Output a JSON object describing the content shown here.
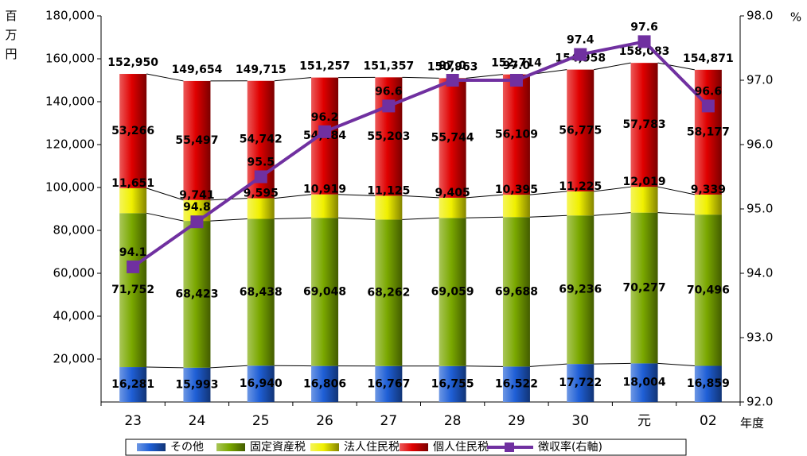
{
  "chart_data": {
    "type": "bar",
    "stacked": true,
    "categories": [
      "23",
      "24",
      "25",
      "26",
      "27",
      "28",
      "29",
      "30",
      "元",
      "02"
    ],
    "x_unit": "年度",
    "y_unit": "百万円",
    "y2_unit": "%",
    "ylim": [
      0,
      180000
    ],
    "yticks": [
      {
        "value": 20000,
        "label": "20,000"
      },
      {
        "value": 40000,
        "label": "40,000"
      },
      {
        "value": 60000,
        "label": "60,000"
      },
      {
        "value": 80000,
        "label": "80,000"
      },
      {
        "value": 100000,
        "label": "100,000"
      },
      {
        "value": 120000,
        "label": "120,000"
      },
      {
        "value": 140000,
        "label": "140,000"
      },
      {
        "value": 160000,
        "label": "160,000"
      },
      {
        "value": 180000,
        "label": "180,000"
      }
    ],
    "y2lim": [
      92,
      98
    ],
    "y2ticks": [
      {
        "value": 92,
        "label": "92.0"
      },
      {
        "value": 93,
        "label": "93.0"
      },
      {
        "value": 94,
        "label": "94.0"
      },
      {
        "value": 95,
        "label": "95.0"
      },
      {
        "value": 96,
        "label": "96.0"
      },
      {
        "value": 97,
        "label": "97.0"
      },
      {
        "value": 98,
        "label": "98.0"
      }
    ],
    "series": [
      {
        "name": "その他",
        "color": "#1f5fd6",
        "values": [
          16281,
          15993,
          16940,
          16806,
          16767,
          16755,
          16522,
          17722,
          18004,
          16859
        ],
        "value_labels": [
          "16,281",
          "15,993",
          "16,940",
          "16,806",
          "16,767",
          "16,755",
          "16,522",
          "17,722",
          "18,004",
          "16,859"
        ]
      },
      {
        "name": "固定資産税",
        "color": "#7aa800",
        "values": [
          71752,
          68423,
          68438,
          69048,
          68262,
          69059,
          69688,
          69236,
          70277,
          70496
        ],
        "value_labels": [
          "71,752",
          "68,423",
          "68,438",
          "69,048",
          "68,262",
          "69,059",
          "69,688",
          "69,236",
          "70,277",
          "70,496"
        ]
      },
      {
        "name": "法人住民税",
        "color": "#f0f000",
        "values": [
          11651,
          9741,
          9595,
          10919,
          11125,
          9405,
          10395,
          11225,
          12019,
          9339
        ],
        "value_labels": [
          "11,651",
          "9,741",
          "9,595",
          "10,919",
          "11,125",
          "9,405",
          "10,395",
          "11,225",
          "12,019",
          "9,339"
        ]
      },
      {
        "name": "個人住民税",
        "color": "#e00000",
        "values": [
          53266,
          55497,
          54742,
          54484,
          55203,
          55744,
          56109,
          56775,
          57783,
          58177
        ],
        "value_labels": [
          "53,266",
          "55,497",
          "54,742",
          "54,484",
          "55,203",
          "55,744",
          "56,109",
          "56,775",
          "57,783",
          "58,177"
        ]
      },
      {
        "name": "徴収率(右軸)",
        "color": "#7030a0",
        "type": "line",
        "axis": "y2",
        "values": [
          94.1,
          94.8,
          95.5,
          96.2,
          96.6,
          97.0,
          97.0,
          97.4,
          97.6,
          96.6
        ],
        "value_labels": [
          "94.1",
          "94.8",
          "95.5",
          "96.2",
          "96.6",
          "97.0",
          "97.0",
          "97.4",
          "97.6",
          "96.6"
        ]
      }
    ],
    "totals": {
      "values": [
        152950,
        149654,
        149715,
        151257,
        151357,
        150963,
        152714,
        154958,
        158083,
        154871
      ],
      "value_labels": [
        "152,950",
        "149,654",
        "149,715",
        "151,257",
        "151,357",
        "150,963",
        "152,714",
        "154,958",
        "158,083",
        "154,871"
      ]
    }
  }
}
